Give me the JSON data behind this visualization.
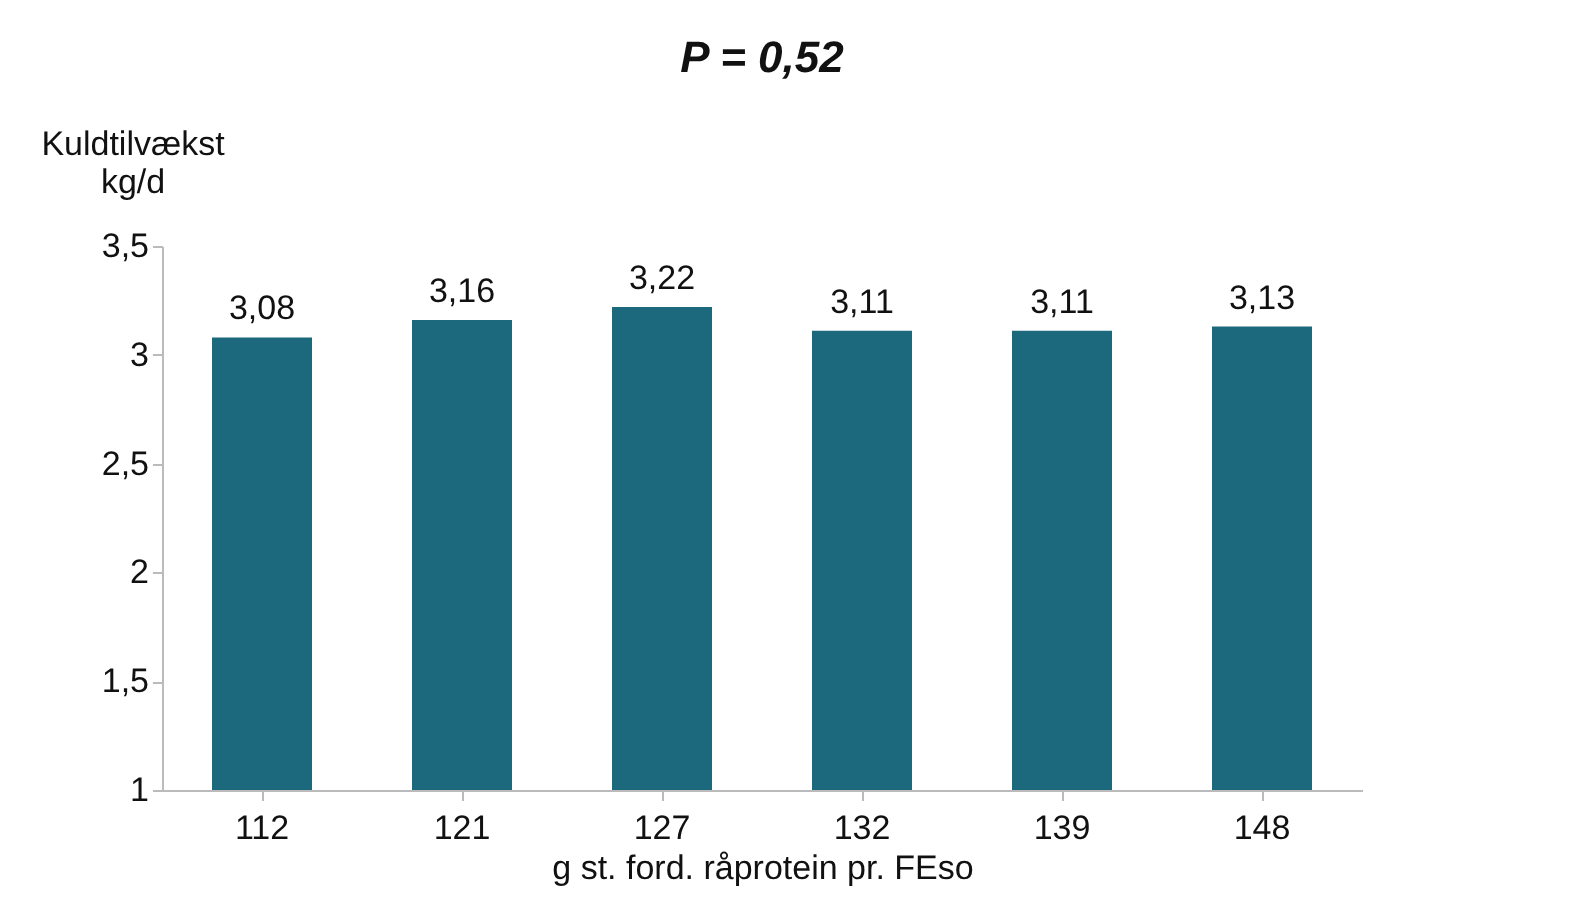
{
  "chart_data": {
    "type": "bar",
    "title": "P = 0,52",
    "xlabel": "g st. ford. råprotein pr. FEso",
    "ylabel": "Kuldtilvækst\nkg/d",
    "categories": [
      "112",
      "121",
      "127",
      "132",
      "139",
      "148"
    ],
    "values": [
      3.08,
      3.16,
      3.22,
      3.11,
      3.11,
      3.13
    ],
    "value_labels": [
      "3,08",
      "3,16",
      "3,22",
      "3,11",
      "3,11",
      "3,13"
    ],
    "color": "#1c687c",
    "ylim": [
      1,
      3.5
    ],
    "yticks": [
      1,
      {
        "value": 1.5,
        "label": "1,5"
      },
      2,
      {
        "value": 2.5,
        "label": "2,5"
      },
      3,
      {
        "value": 3.5,
        "label": "3,5"
      }
    ],
    "grid": false
  }
}
